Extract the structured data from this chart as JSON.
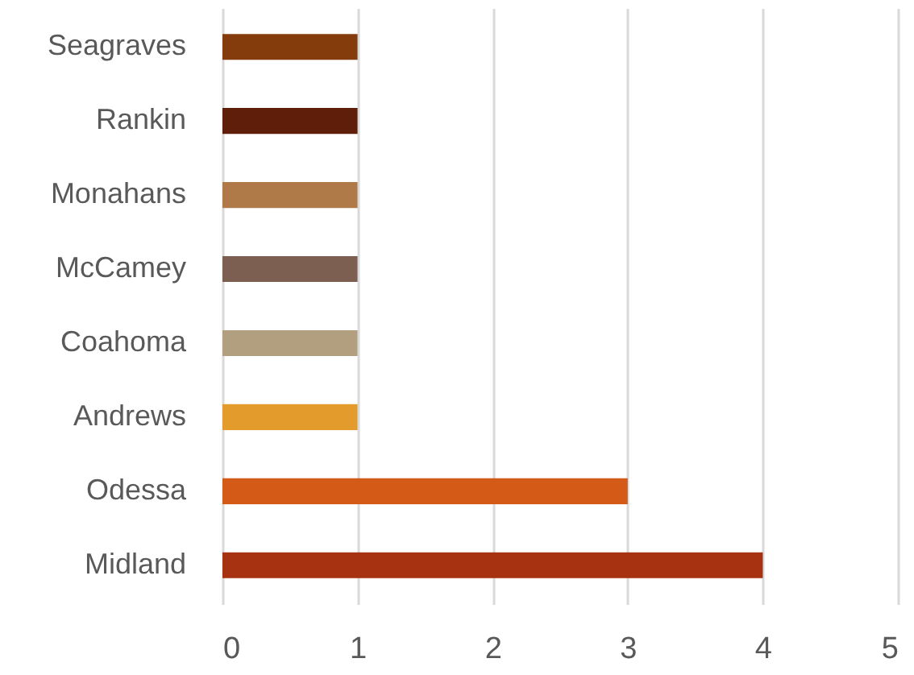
{
  "chart_data": {
    "type": "bar",
    "orientation": "horizontal",
    "categories": [
      "Seagraves",
      "Rankin",
      "Monahans",
      "McCamey",
      "Coahoma",
      "Andrews",
      "Odessa",
      "Midland"
    ],
    "values": [
      1,
      1,
      1,
      1,
      1,
      1,
      3,
      4
    ],
    "colors": [
      "#843c0c",
      "#5f1e0a",
      "#b07a48",
      "#7d5f52",
      "#b19f80",
      "#e39b2b",
      "#d45a18",
      "#a63212"
    ],
    "xlim": [
      0,
      5
    ],
    "xticks": [
      0,
      1,
      2,
      3,
      4,
      5
    ],
    "grid": "x"
  }
}
